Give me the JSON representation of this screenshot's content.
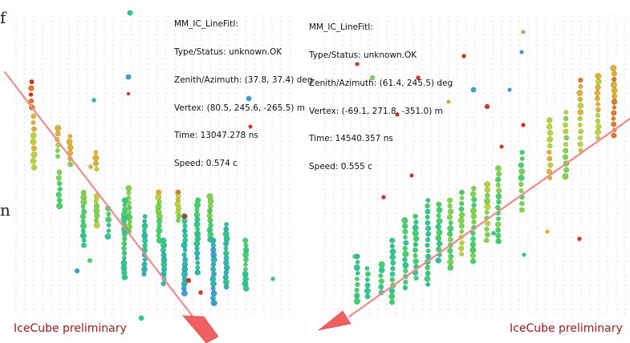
{
  "left_event": {
    "info_lines": [
      "MM_IC_LineFitI:",
      "Type/Status: unknown.OK",
      "Zenith/Azimuth: (37.8, 37.4) deg",
      "Vertex: (80.5, 245.6, -265.5) m",
      "Time: 13047.278 ns",
      "Speed: 0.574 c"
    ],
    "label": "IceCube preliminary"
  },
  "right_event": {
    "info_lines": [
      "MM_IC_LineFitI:",
      "Type/Status: unknown.OK",
      "Zenith/Azimuth: (61.4, 245.5) deg",
      "Vertex: (-69.1, 271.8, -351.0) m",
      "Time: 14540.357 ns",
      "Speed: 0.555 c"
    ],
    "label": "IceCube preliminary"
  },
  "edge_text": {
    "top": "f",
    "middle": "n"
  },
  "colors": {
    "track": "#f08a8a",
    "arrow_head": "#f06060",
    "label": "#9a1b1b",
    "string_dots": "#b0b0b0"
  }
}
